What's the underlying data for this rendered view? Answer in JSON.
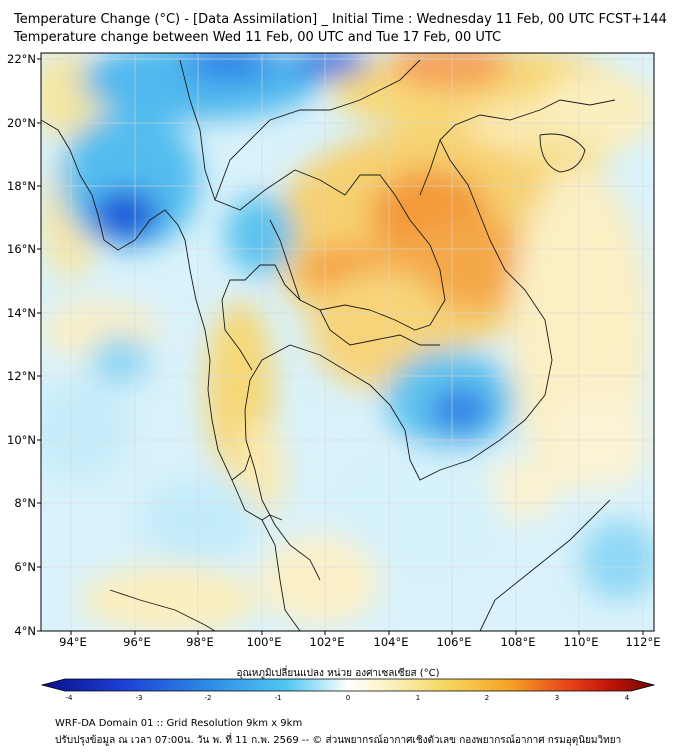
{
  "title_line1": "Temperature Change (°C) - [Data Assimilation] _ Initial Time : Wednesday 11 Feb, 00 UTC FCST+144",
  "title_line2": "Temperature change between Wed 11 Feb, 00 UTC and Tue 17 Feb, 00 UTC",
  "lat_labels": [
    "22°N",
    "20°N",
    "18°N",
    "16°N",
    "14°N",
    "12°N",
    "10°N",
    "8°N",
    "6°N",
    "4°N"
  ],
  "lon_labels": [
    "94°E",
    "96°E",
    "98°E",
    "100°E",
    "102°E",
    "104°E",
    "106°E",
    "108°E",
    "110°E",
    "112°E"
  ],
  "colorbar": {
    "title": "อุณหภูมิเปลี่ยนแปลง หน่วย องศาเซลเซียส (°C)",
    "ticks": [
      "-4",
      "-3",
      "-2",
      "-1",
      "0",
      "1",
      "2",
      "3",
      "4"
    ],
    "min": -4,
    "max": 4,
    "colors": {
      "cold_extreme": "#0b0f8a",
      "cold": "#1a5fe0",
      "cool": "#3fb4f0",
      "neutral": "#ffffff",
      "mild": "#f6e7a0",
      "warm": "#f5a623",
      "hot": "#e02a10",
      "hot_extreme": "#6e0a06"
    }
  },
  "footer_line1": "WRF-DA Domain 01 :: Grid Resolution 9km x 9km",
  "footer_line2": "ปรับปรุงข้อมูล ณ เวลา 07:00น. วัน พ. ที่ 11 ก.พ. 2569 -- © ส่วนพยากรณ์อากาศเชิงตัวเลข กองพยากรณ์อากาศ กรมอุตุนิยมวิทยา"
}
